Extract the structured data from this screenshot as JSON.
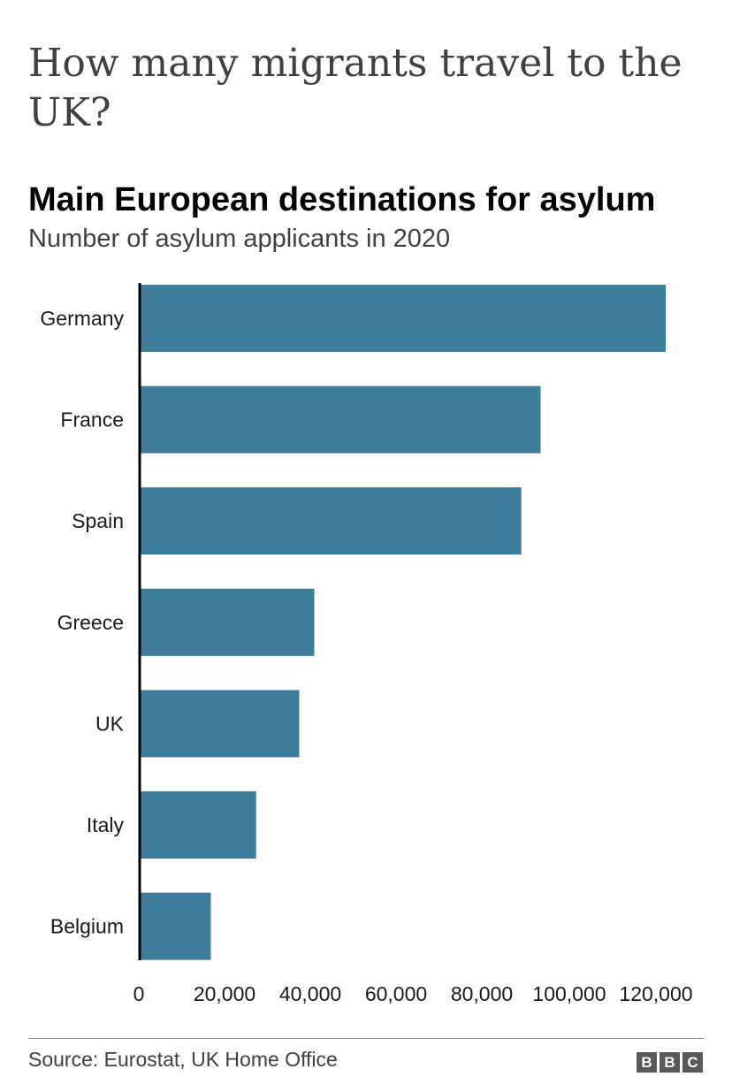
{
  "headline": "How many migrants travel to the UK?",
  "chart_data": {
    "type": "bar",
    "orientation": "horizontal",
    "title": "Main European destinations for asylum",
    "subtitle": "Number of asylum applicants in 2020",
    "categories": [
      "Germany",
      "France",
      "Spain",
      "Greece",
      "UK",
      "Italy",
      "Belgium"
    ],
    "values": [
      122000,
      93000,
      88500,
      40500,
      37000,
      27000,
      16500
    ],
    "xlim": [
      0,
      122000
    ],
    "ticks": [
      0,
      20000,
      40000,
      60000,
      80000,
      100000,
      120000
    ],
    "tick_labels": [
      "0",
      "20,000",
      "40,000",
      "60,000",
      "80,000",
      "100,000",
      "120,000"
    ],
    "bar_color": "#3c7d9c",
    "grid": false
  },
  "source": "Source: Eurostat, UK Home Office",
  "logo": {
    "letters": [
      "B",
      "B",
      "C"
    ]
  }
}
